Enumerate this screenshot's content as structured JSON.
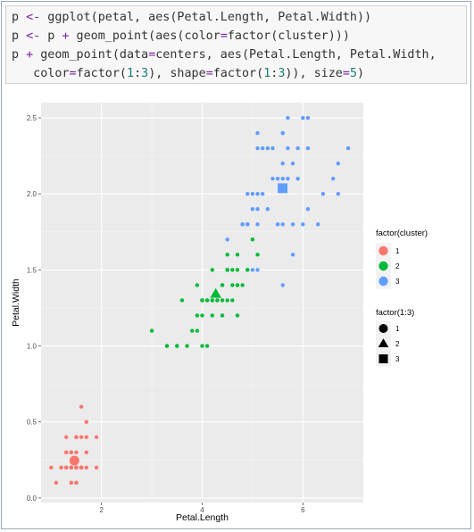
{
  "code_lines": [
    [
      {
        "t": "p "
      },
      {
        "t": "<-",
        "c": "op"
      },
      {
        "t": " ggplot(petal, aes(Petal.Length, Petal.Width))"
      }
    ],
    [
      {
        "t": "p "
      },
      {
        "t": "<-",
        "c": "op"
      },
      {
        "t": " p "
      },
      {
        "t": "+",
        "c": "op"
      },
      {
        "t": " geom_point(aes(color"
      },
      {
        "t": "=",
        "c": "op"
      },
      {
        "t": "factor(cluster)))"
      }
    ],
    [
      {
        "t": "p "
      },
      {
        "t": "+",
        "c": "op"
      },
      {
        "t": " geom_point(data"
      },
      {
        "t": "=",
        "c": "op"
      },
      {
        "t": "centers, aes(Petal.Length, Petal.Width,"
      }
    ],
    [
      {
        "t": "   color"
      },
      {
        "t": "=",
        "c": "op"
      },
      {
        "t": "factor("
      },
      {
        "t": "1",
        "c": "num"
      },
      {
        "t": ":"
      },
      {
        "t": "3",
        "c": "num"
      },
      {
        "t": "), shape"
      },
      {
        "t": "=",
        "c": "op"
      },
      {
        "t": "factor("
      },
      {
        "t": "1",
        "c": "num"
      },
      {
        "t": ":"
      },
      {
        "t": "3",
        "c": "num"
      },
      {
        "t": ")), size"
      },
      {
        "t": "=",
        "c": "op"
      },
      {
        "t": "5",
        "c": "num"
      },
      {
        "t": ")"
      }
    ]
  ],
  "chart_data": {
    "type": "scatter",
    "xlabel": "Petal.Length",
    "ylabel": "Petal.Width",
    "xlim": [
      0.8,
      7.2
    ],
    "ylim": [
      -0.03,
      2.6
    ],
    "x_ticks": [
      {
        "v": 2,
        "label": "2"
      },
      {
        "v": 4,
        "label": "4"
      },
      {
        "v": 6,
        "label": "6"
      }
    ],
    "y_ticks": [
      {
        "v": 0,
        "label": "0.0"
      },
      {
        "v": 0.5,
        "label": "0.5"
      },
      {
        "v": 1,
        "label": "1.0"
      },
      {
        "v": 1.5,
        "label": "1.5"
      },
      {
        "v": 2,
        "label": "2.0"
      },
      {
        "v": 2.5,
        "label": "2.5"
      }
    ],
    "grid": true,
    "legend_position": "right",
    "series": [
      {
        "name": "1",
        "color": "#F8766D",
        "points": [
          [
            1.4,
            0.2
          ],
          [
            1.4,
            0.2
          ],
          [
            1.3,
            0.2
          ],
          [
            1.5,
            0.2
          ],
          [
            1.4,
            0.2
          ],
          [
            1.7,
            0.4
          ],
          [
            1.4,
            0.3
          ],
          [
            1.5,
            0.2
          ],
          [
            1.4,
            0.2
          ],
          [
            1.5,
            0.1
          ],
          [
            1.5,
            0.2
          ],
          [
            1.6,
            0.2
          ],
          [
            1.4,
            0.1
          ],
          [
            1.1,
            0.1
          ],
          [
            1.2,
            0.2
          ],
          [
            1.5,
            0.4
          ],
          [
            1.3,
            0.4
          ],
          [
            1.4,
            0.3
          ],
          [
            1.7,
            0.3
          ],
          [
            1.5,
            0.3
          ],
          [
            1.7,
            0.2
          ],
          [
            1.5,
            0.4
          ],
          [
            1.0,
            0.2
          ],
          [
            1.7,
            0.5
          ],
          [
            1.9,
            0.2
          ],
          [
            1.6,
            0.2
          ],
          [
            1.6,
            0.4
          ],
          [
            1.5,
            0.2
          ],
          [
            1.4,
            0.2
          ],
          [
            1.6,
            0.2
          ],
          [
            1.6,
            0.2
          ],
          [
            1.5,
            0.4
          ],
          [
            1.5,
            0.1
          ],
          [
            1.4,
            0.2
          ],
          [
            1.5,
            0.2
          ],
          [
            1.2,
            0.2
          ],
          [
            1.3,
            0.2
          ],
          [
            1.4,
            0.1
          ],
          [
            1.3,
            0.2
          ],
          [
            1.5,
            0.2
          ],
          [
            1.3,
            0.3
          ],
          [
            1.3,
            0.3
          ],
          [
            1.3,
            0.2
          ],
          [
            1.6,
            0.6
          ],
          [
            1.9,
            0.4
          ],
          [
            1.4,
            0.3
          ],
          [
            1.6,
            0.2
          ],
          [
            1.4,
            0.2
          ],
          [
            1.5,
            0.2
          ],
          [
            1.4,
            0.2
          ]
        ]
      },
      {
        "name": "2",
        "color": "#00BA38",
        "points": [
          [
            4.7,
            1.4
          ],
          [
            4.5,
            1.5
          ],
          [
            4.9,
            1.5
          ],
          [
            4.0,
            1.3
          ],
          [
            4.6,
            1.5
          ],
          [
            4.5,
            1.3
          ],
          [
            4.7,
            1.6
          ],
          [
            3.3,
            1.0
          ],
          [
            4.6,
            1.3
          ],
          [
            3.9,
            1.4
          ],
          [
            3.5,
            1.0
          ],
          [
            4.2,
            1.5
          ],
          [
            4.0,
            1.0
          ],
          [
            4.7,
            1.4
          ],
          [
            3.6,
            1.3
          ],
          [
            4.4,
            1.4
          ],
          [
            4.5,
            1.5
          ],
          [
            4.1,
            1.0
          ],
          [
            4.5,
            1.5
          ],
          [
            3.9,
            1.1
          ],
          [
            4.8,
            1.8
          ],
          [
            4.0,
            1.3
          ],
          [
            4.9,
            1.5
          ],
          [
            4.7,
            1.2
          ],
          [
            4.3,
            1.3
          ],
          [
            4.4,
            1.4
          ],
          [
            4.8,
            1.4
          ],
          [
            5.0,
            1.7
          ],
          [
            4.5,
            1.5
          ],
          [
            3.5,
            1.0
          ],
          [
            3.8,
            1.1
          ],
          [
            3.7,
            1.0
          ],
          [
            3.9,
            1.2
          ],
          [
            5.1,
            1.6
          ],
          [
            4.5,
            1.5
          ],
          [
            4.5,
            1.6
          ],
          [
            4.7,
            1.5
          ],
          [
            4.4,
            1.3
          ],
          [
            4.1,
            1.3
          ],
          [
            4.0,
            1.3
          ],
          [
            4.4,
            1.2
          ],
          [
            4.6,
            1.4
          ],
          [
            4.0,
            1.2
          ],
          [
            3.3,
            1.0
          ],
          [
            4.2,
            1.3
          ],
          [
            4.2,
            1.2
          ],
          [
            4.2,
            1.3
          ],
          [
            4.3,
            1.3
          ],
          [
            3.0,
            1.1
          ],
          [
            4.1,
            1.3
          ],
          [
            4.9,
            1.8
          ]
        ]
      },
      {
        "name": "3",
        "color": "#619CFF",
        "points": [
          [
            6.0,
            2.5
          ],
          [
            5.1,
            1.9
          ],
          [
            5.9,
            2.1
          ],
          [
            5.6,
            1.8
          ],
          [
            5.8,
            2.2
          ],
          [
            6.6,
            2.1
          ],
          [
            4.5,
            1.7
          ],
          [
            6.3,
            1.8
          ],
          [
            5.8,
            1.8
          ],
          [
            6.1,
            2.5
          ],
          [
            5.1,
            2.0
          ],
          [
            5.3,
            1.9
          ],
          [
            5.5,
            2.1
          ],
          [
            5.0,
            2.0
          ],
          [
            5.1,
            2.4
          ],
          [
            5.3,
            2.3
          ],
          [
            5.5,
            1.8
          ],
          [
            6.7,
            2.2
          ],
          [
            6.9,
            2.3
          ],
          [
            5.0,
            1.5
          ],
          [
            5.7,
            2.3
          ],
          [
            4.9,
            2.0
          ],
          [
            6.7,
            2.0
          ],
          [
            4.9,
            1.8
          ],
          [
            5.7,
            2.1
          ],
          [
            6.0,
            1.8
          ],
          [
            4.8,
            1.8
          ],
          [
            4.9,
            1.8
          ],
          [
            5.6,
            2.1
          ],
          [
            5.8,
            1.6
          ],
          [
            6.1,
            1.9
          ],
          [
            6.4,
            2.0
          ],
          [
            5.6,
            2.2
          ],
          [
            5.1,
            1.5
          ],
          [
            5.6,
            1.4
          ],
          [
            6.1,
            2.3
          ],
          [
            5.6,
            2.4
          ],
          [
            5.5,
            1.8
          ],
          [
            4.8,
            1.8
          ],
          [
            5.4,
            2.1
          ],
          [
            5.6,
            2.4
          ],
          [
            5.1,
            2.3
          ],
          [
            5.9,
            2.3
          ],
          [
            5.7,
            2.5
          ],
          [
            5.2,
            2.3
          ],
          [
            5.0,
            1.9
          ],
          [
            5.2,
            2.0
          ],
          [
            5.4,
            2.3
          ],
          [
            5.1,
            1.8
          ]
        ]
      }
    ],
    "centers": [
      {
        "cluster": "1",
        "x": 1.462,
        "y": 0.246,
        "shape": "circle"
      },
      {
        "cluster": "2",
        "x": 4.269,
        "y": 1.342,
        "shape": "triangle"
      },
      {
        "cluster": "3",
        "x": 5.596,
        "y": 2.037,
        "shape": "square"
      }
    ],
    "legend_color": {
      "title": "factor(cluster)",
      "entries": [
        "1",
        "2",
        "3"
      ]
    },
    "legend_shape": {
      "title": "factor(1:3)",
      "entries": [
        "1",
        "2",
        "3"
      ],
      "shapes": [
        "circle",
        "triangle",
        "square"
      ]
    }
  }
}
